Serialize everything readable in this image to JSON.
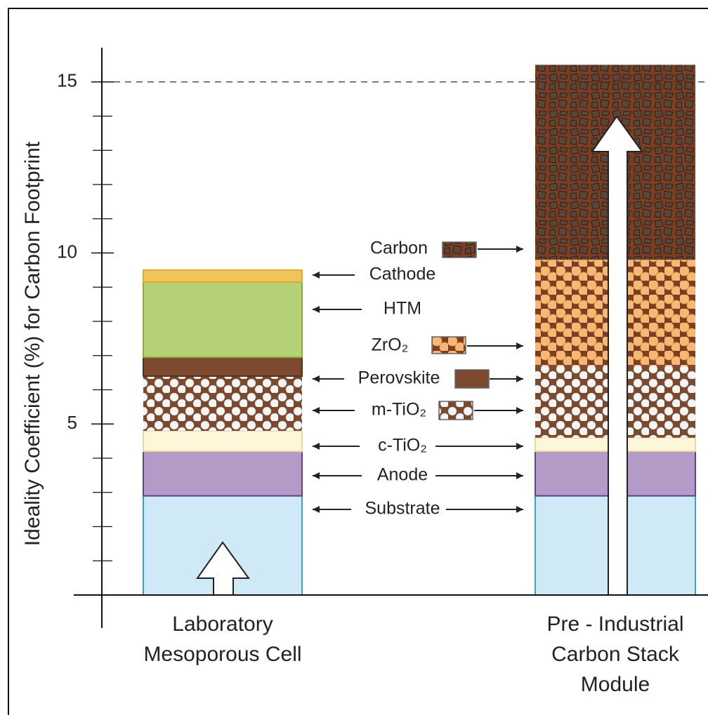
{
  "chart_data": {
    "type": "stacked_bar",
    "y_label": "Ideality Coefficient (%) for Carbon Footprint",
    "categories": [
      "Laboratory Mesoporous Cell",
      "Pre - Industrial Carbon Stack Module"
    ],
    "series": [
      {
        "name": "Substrate",
        "color": "#cfe9f7",
        "values": [
          2.9,
          2.9
        ]
      },
      {
        "name": "Anode",
        "color": "#b39bc8",
        "values": [
          1.3,
          1.3
        ]
      },
      {
        "name": "c-TiO₂",
        "color": "#fdf6d8",
        "values": [
          0.6,
          0.4
        ]
      },
      {
        "name": "m-TiO₂",
        "color": "#7a4a2e",
        "values": [
          1.6,
          2.1
        ]
      },
      {
        "name": "Perovskite",
        "color": "#7b4a30",
        "values": [
          0.55,
          0
        ]
      },
      {
        "name": "ZrO₂",
        "color": "#f5b877",
        "values": [
          0,
          3.1
        ]
      },
      {
        "name": "HTM",
        "color": "#b5d178",
        "values": [
          2.2,
          0
        ]
      },
      {
        "name": "Cathode",
        "color": "#efc55a",
        "values": [
          0.35,
          0
        ]
      },
      {
        "name": "Carbon",
        "color": "#5a4638",
        "values": [
          0,
          5.7
        ]
      }
    ],
    "ylim": [
      0,
      16
    ],
    "yticks": [
      5,
      10,
      15
    ],
    "minor_yticks": [
      1,
      2,
      3,
      4,
      6,
      7,
      8,
      9,
      11,
      12,
      13,
      14
    ],
    "reference_line": 15
  }
}
